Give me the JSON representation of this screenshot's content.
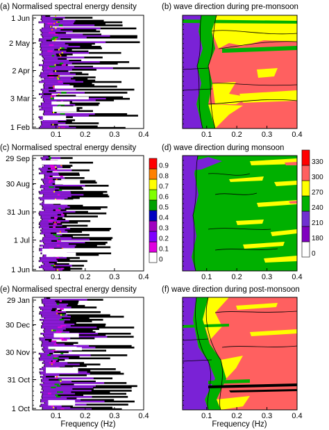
{
  "figure": {
    "xlabel": "Frequency (Hz)",
    "xticks": [
      "0.1",
      "0.2",
      "0.3",
      "0.4"
    ],
    "colorbar_energy": {
      "ticks": [
        "0.9",
        "0.8",
        "0.7",
        "0.6",
        "0.5",
        "0.4",
        "0.3",
        "0.2",
        "0.1",
        "0"
      ],
      "colors": [
        "#ffffff",
        "#e000e0",
        "#8000ff",
        "#a000c0",
        "#0000c0",
        "#00a000",
        "#80ff00",
        "#ffff00",
        "#ff8000",
        "#ff0000"
      ]
    },
    "colorbar_direction": {
      "ticks": [
        "330",
        "300",
        "270",
        "240",
        "210",
        "180",
        "0"
      ],
      "colors": [
        "#ffffff",
        "#8000c0",
        "#7030d0",
        "#00b000",
        "#ffff00",
        "#ff6060",
        "#ff0000"
      ]
    }
  },
  "chart_data": [
    {
      "id": "a",
      "type": "heatmap",
      "title": "(a) Normalised spectral energy density",
      "xlim": [
        0.02,
        0.4
      ],
      "yticks": [
        "1 Jun",
        "2 May",
        "2 Apr",
        "3 Mar",
        "1 Feb"
      ],
      "xlabel": ""
    },
    {
      "id": "b",
      "type": "heatmap",
      "title": "(b) wave direction during pre-monsoon",
      "xlim": [
        0.02,
        0.4
      ],
      "xlabel": ""
    },
    {
      "id": "c",
      "type": "heatmap",
      "title": "(c) Normalised spectral energy density",
      "xlim": [
        0.02,
        0.4
      ],
      "yticks": [
        "29 Sep",
        "30 Aug",
        "31 Jun",
        "1 Jul",
        "1 Jun"
      ],
      "xlabel": ""
    },
    {
      "id": "d",
      "type": "heatmap",
      "title": "(d) wave direction during monsoon",
      "xlim": [
        0.02,
        0.4
      ],
      "xlabel": ""
    },
    {
      "id": "e",
      "type": "heatmap",
      "title": "(e) Normalised spectral energy density",
      "xlim": [
        0.02,
        0.4
      ],
      "yticks": [
        "29 Jan",
        "30 Dec",
        "30 Nov",
        "31 Oct",
        "1 Oct"
      ],
      "xlabel": "Frequency (Hz)"
    },
    {
      "id": "f",
      "type": "heatmap",
      "title": "(f) wave direction during post-monsoon",
      "xlim": [
        0.02,
        0.4
      ],
      "xlabel": "Frequency (Hz)"
    }
  ]
}
